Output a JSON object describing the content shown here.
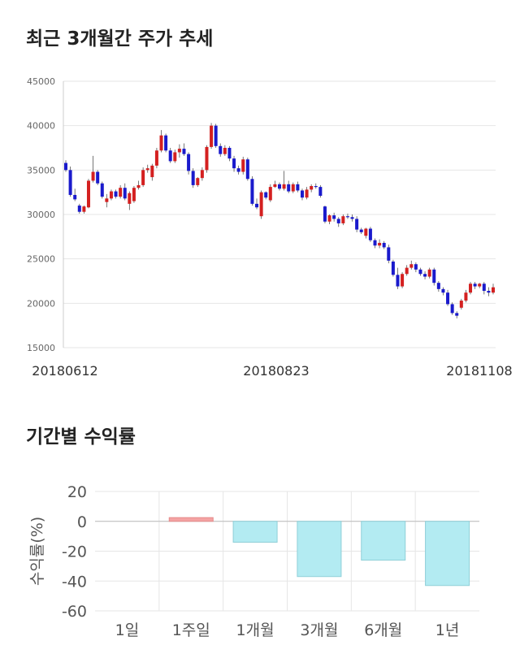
{
  "charts": {
    "price": {
      "title": "최근 3개월간 주가 추세",
      "y_ticks": [
        "45000",
        "40000",
        "35000",
        "30000",
        "25000",
        "20000",
        "15000"
      ],
      "x_ticks": [
        "20180612",
        "20180823",
        "20181108"
      ]
    },
    "returns": {
      "title": "기간별 수익률",
      "y_ticks": [
        "20",
        "0",
        "-20",
        "-40",
        "-60"
      ],
      "ylabel": "수익률(%)"
    }
  },
  "colors": {
    "up": "#d42020",
    "down": "#1a1acc",
    "positive_bar": "#f4a3a3",
    "negative_bar": "#b3ebf2",
    "grid": "#e6e6e6"
  },
  "chart_data": [
    {
      "type": "candlestick",
      "title": "최근 3개월간 주가 추세",
      "ylim": [
        15000,
        45000
      ],
      "x_tick_labels": [
        "20180612",
        "20180823",
        "20181108"
      ],
      "ohlc": [
        [
          35800,
          36100,
          34800,
          35000
        ],
        [
          35000,
          35400,
          32000,
          32200
        ],
        [
          32200,
          32900,
          31500,
          31700
        ],
        [
          31000,
          31200,
          30100,
          30300
        ],
        [
          30300,
          31000,
          30100,
          30900
        ],
        [
          30800,
          34000,
          30700,
          33800
        ],
        [
          33800,
          36600,
          33600,
          34800
        ],
        [
          34800,
          35000,
          33300,
          33500
        ],
        [
          33500,
          33700,
          31800,
          32000
        ],
        [
          31400,
          32300,
          30800,
          31800
        ],
        [
          31800,
          32800,
          31600,
          32600
        ],
        [
          32600,
          32800,
          31800,
          32000
        ],
        [
          32000,
          33300,
          31800,
          33000
        ],
        [
          33000,
          33500,
          31600,
          31800
        ],
        [
          31200,
          32600,
          30500,
          32400
        ],
        [
          31500,
          33200,
          31300,
          33000
        ],
        [
          33000,
          33800,
          32800,
          33300
        ],
        [
          33300,
          35300,
          33100,
          35000
        ],
        [
          35000,
          35600,
          34700,
          35200
        ],
        [
          34200,
          35700,
          33800,
          35500
        ],
        [
          35500,
          37500,
          35200,
          37200
        ],
        [
          37200,
          39500,
          37000,
          38900
        ],
        [
          38900,
          39100,
          37000,
          37200
        ],
        [
          37200,
          37500,
          35800,
          36000
        ],
        [
          36000,
          37300,
          35800,
          37000
        ],
        [
          37000,
          37900,
          36400,
          37400
        ],
        [
          37400,
          38000,
          36600,
          36800
        ],
        [
          36800,
          37000,
          34500,
          34900
        ],
        [
          34900,
          35200,
          33000,
          33300
        ],
        [
          33300,
          34200,
          33100,
          34100
        ],
        [
          34100,
          35300,
          33800,
          35000
        ],
        [
          35000,
          37800,
          34700,
          37600
        ],
        [
          37600,
          40300,
          37400,
          40000
        ],
        [
          40000,
          40200,
          37500,
          37700
        ],
        [
          37700,
          38000,
          36500,
          36800
        ],
        [
          36800,
          37800,
          36600,
          37500
        ],
        [
          37500,
          37700,
          36000,
          36300
        ],
        [
          36300,
          36600,
          34800,
          35200
        ],
        [
          35200,
          35500,
          34500,
          34800
        ],
        [
          34800,
          36500,
          34500,
          36200
        ],
        [
          36200,
          36400,
          33800,
          34000
        ],
        [
          34000,
          34300,
          31000,
          31200
        ],
        [
          31200,
          31800,
          30600,
          30800
        ],
        [
          29800,
          32700,
          29500,
          32500
        ],
        [
          32500,
          32600,
          31700,
          31900
        ],
        [
          31600,
          33400,
          31400,
          33100
        ],
        [
          33100,
          33800,
          33000,
          33400
        ],
        [
          33400,
          33600,
          32700,
          32900
        ],
        [
          32900,
          34900,
          32700,
          33400
        ],
        [
          33400,
          33800,
          32400,
          32600
        ],
        [
          32600,
          33600,
          32400,
          33400
        ],
        [
          33400,
          33700,
          32500,
          32700
        ],
        [
          32700,
          32900,
          31600,
          31900
        ],
        [
          31900,
          33100,
          31700,
          32800
        ],
        [
          32800,
          33400,
          32500,
          33200
        ],
        [
          33200,
          33500,
          32900,
          33100
        ],
        [
          33100,
          33300,
          31900,
          32100
        ],
        [
          30900,
          31000,
          29000,
          29200
        ],
        [
          29200,
          30000,
          28900,
          29900
        ],
        [
          29900,
          30200,
          29200,
          29500
        ],
        [
          29500,
          29700,
          28600,
          29000
        ],
        [
          29000,
          30000,
          28800,
          29800
        ],
        [
          29800,
          30100,
          29500,
          29700
        ],
        [
          29700,
          30000,
          29200,
          29500
        ],
        [
          29500,
          29800,
          28000,
          28300
        ],
        [
          28300,
          28500,
          27800,
          28000
        ],
        [
          27600,
          28500,
          27300,
          28400
        ],
        [
          28400,
          28600,
          26900,
          27100
        ],
        [
          27100,
          27300,
          26200,
          26500
        ],
        [
          26500,
          27200,
          26200,
          26800
        ],
        [
          26800,
          27000,
          26100,
          26300
        ],
        [
          26300,
          26600,
          24500,
          24800
        ],
        [
          24700,
          24900,
          23000,
          23200
        ],
        [
          23200,
          24000,
          21600,
          21900
        ],
        [
          21900,
          23500,
          21700,
          23300
        ],
        [
          23300,
          24300,
          23100,
          24000
        ],
        [
          24000,
          24800,
          23800,
          24400
        ],
        [
          24400,
          24600,
          23500,
          23800
        ],
        [
          23800,
          24000,
          23100,
          23300
        ],
        [
          23300,
          23600,
          22700,
          23000
        ],
        [
          23000,
          24000,
          22800,
          23800
        ],
        [
          23800,
          24000,
          22000,
          22300
        ],
        [
          22300,
          22500,
          21300,
          21600
        ],
        [
          21600,
          21800,
          20900,
          21200
        ],
        [
          21200,
          21500,
          19700,
          19900
        ],
        [
          19900,
          20100,
          18700,
          18900
        ],
        [
          18900,
          19100,
          18300,
          18600
        ],
        [
          19500,
          20500,
          19300,
          20300
        ],
        [
          20300,
          21500,
          20100,
          21200
        ],
        [
          21200,
          22400,
          21000,
          22200
        ],
        [
          22200,
          22400,
          21600,
          21900
        ],
        [
          21900,
          22300,
          21700,
          22200
        ],
        [
          22200,
          22400,
          21000,
          21400
        ],
        [
          21400,
          21800,
          20800,
          21200
        ],
        [
          21200,
          22200,
          21000,
          21800
        ]
      ]
    },
    {
      "type": "bar",
      "categories": [
        "1일",
        "1주일",
        "1개월",
        "3개월",
        "6개월",
        "1년"
      ],
      "values": [
        0,
        2.5,
        -14,
        -37,
        -26,
        -43
      ],
      "ylabel": "수익률(%)",
      "ylim": [
        -60,
        20
      ]
    }
  ]
}
